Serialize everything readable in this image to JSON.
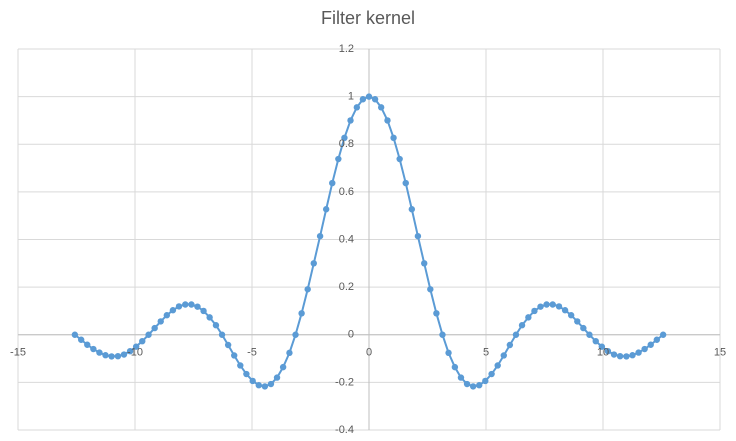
{
  "chart_data": {
    "type": "scatter",
    "title": "Filter kernel",
    "color": "#5b9bd5",
    "grid": true,
    "x": [
      -12.57,
      -12.3,
      -12.04,
      -11.78,
      -11.52,
      -11.26,
      -11.0,
      -10.73,
      -10.47,
      -10.21,
      -9.95,
      -9.69,
      -9.42,
      -9.16,
      -8.9,
      -8.64,
      -8.38,
      -8.12,
      -7.85,
      -7.59,
      -7.33,
      -7.07,
      -6.81,
      -6.54,
      -6.28,
      -6.02,
      -5.76,
      -5.5,
      -5.24,
      -4.97,
      -4.71,
      -4.45,
      -4.19,
      -3.93,
      -3.67,
      -3.4,
      -3.14,
      -2.88,
      -2.62,
      -2.36,
      -2.09,
      -1.83,
      -1.57,
      -1.31,
      -1.05,
      -0.79,
      -0.52,
      -0.26,
      0,
      0.26,
      0.52,
      0.79,
      1.05,
      1.31,
      1.57,
      1.83,
      2.09,
      2.36,
      2.62,
      2.88,
      3.14,
      3.4,
      3.67,
      3.93,
      4.19,
      4.45,
      4.71,
      4.97,
      5.24,
      5.5,
      5.76,
      6.02,
      6.28,
      6.54,
      6.81,
      7.07,
      7.33,
      7.59,
      7.85,
      8.12,
      8.38,
      8.64,
      8.9,
      9.16,
      9.42,
      9.69,
      9.95,
      10.21,
      10.47,
      10.73,
      11.0,
      11.26,
      11.52,
      11.78,
      12.04,
      12.3,
      12.57
    ],
    "values": [
      0,
      -0.021,
      -0.042,
      -0.06,
      -0.075,
      -0.086,
      -0.091,
      -0.09,
      -0.083,
      -0.069,
      -0.05,
      -0.027,
      0,
      0.028,
      0.056,
      0.082,
      0.103,
      0.119,
      0.127,
      0.127,
      0.118,
      0.1,
      0.073,
      0.04,
      0,
      -0.043,
      -0.087,
      -0.129,
      -0.165,
      -0.194,
      -0.212,
      -0.217,
      -0.207,
      -0.18,
      -0.136,
      -0.076,
      0,
      0.09,
      0.191,
      0.3,
      0.414,
      0.527,
      0.637,
      0.738,
      0.827,
      0.9,
      0.955,
      0.989,
      1,
      0.989,
      0.955,
      0.9,
      0.827,
      0.738,
      0.637,
      0.527,
      0.414,
      0.3,
      0.191,
      0.09,
      0,
      -0.076,
      -0.136,
      -0.18,
      -0.207,
      -0.217,
      -0.212,
      -0.194,
      -0.165,
      -0.129,
      -0.087,
      -0.043,
      0,
      0.04,
      0.073,
      0.1,
      0.118,
      0.127,
      0.127,
      0.119,
      0.103,
      0.082,
      0.056,
      0.028,
      0,
      -0.027,
      -0.05,
      -0.069,
      -0.083,
      -0.09,
      -0.091,
      -0.086,
      -0.075,
      -0.06,
      -0.042,
      -0.021,
      0
    ],
    "xlim": [
      -15,
      15
    ],
    "xticks": [
      -15,
      -10,
      -5,
      0,
      5,
      10,
      15
    ],
    "ylim": [
      -0.4,
      1.2
    ],
    "yticks": [
      -0.4,
      -0.2,
      0,
      0.2,
      0.4,
      0.6,
      0.8,
      1,
      1.2
    ]
  }
}
